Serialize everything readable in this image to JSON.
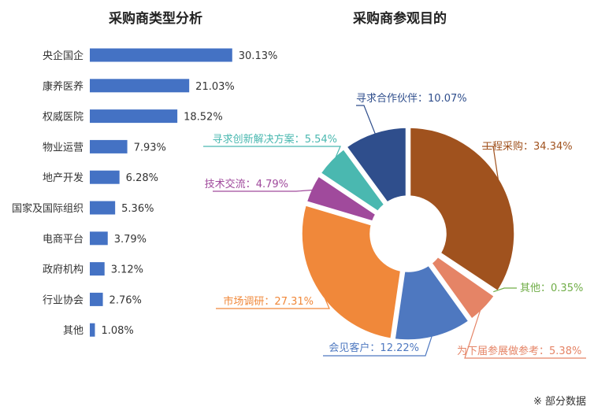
{
  "footnote": "※ 部分数据",
  "colors": {
    "bar": "#4472c4",
    "text": "#333333"
  },
  "chart_data": [
    {
      "type": "bar",
      "orientation": "horizontal",
      "title": "采购商类型分析",
      "categories": [
        "央企国企",
        "康养医养",
        "权威医院",
        "物业运营",
        "地产开发",
        "国家及国际组织",
        "电商平台",
        "政府机构",
        "行业协会",
        "其他"
      ],
      "values": [
        30.13,
        21.03,
        18.52,
        7.93,
        6.28,
        5.36,
        3.79,
        3.12,
        2.76,
        1.08
      ],
      "value_labels": [
        "30.13%",
        "21.03%",
        "18.52%",
        "7.93%",
        "6.28%",
        "5.36%",
        "3.79%",
        "3.12%",
        "2.76%",
        "1.08%"
      ],
      "unit": "%",
      "grid": false
    },
    {
      "type": "pie",
      "variant": "donut",
      "title": "采购商参观目的",
      "slices": [
        {
          "label": "工程采购",
          "value": 34.34,
          "value_label": "34.34%",
          "color": "#a0521e"
        },
        {
          "label": "其他",
          "value": 0.35,
          "value_label": "0.35%",
          "color": "#70ad47"
        },
        {
          "label": "为下届参展做参考",
          "value": 5.38,
          "value_label": "5.38%",
          "color": "#e58466"
        },
        {
          "label": "会见客户",
          "value": 12.22,
          "value_label": "12.22%",
          "color": "#4e78c0"
        },
        {
          "label": "市场调研",
          "value": 27.31,
          "value_label": "27.31%",
          "color": "#f0883a"
        },
        {
          "label": "技术交流",
          "value": 4.79,
          "value_label": "4.79%",
          "color": "#a04a9c"
        },
        {
          "label": "寻求创新解决方案",
          "value": 5.54,
          "value_label": "5.54%",
          "color": "#4ab8b0"
        },
        {
          "label": "寻求合作伙伴",
          "value": 10.07,
          "value_label": "10.07%",
          "color": "#2f4e8c"
        }
      ],
      "label_separator": "："
    }
  ]
}
